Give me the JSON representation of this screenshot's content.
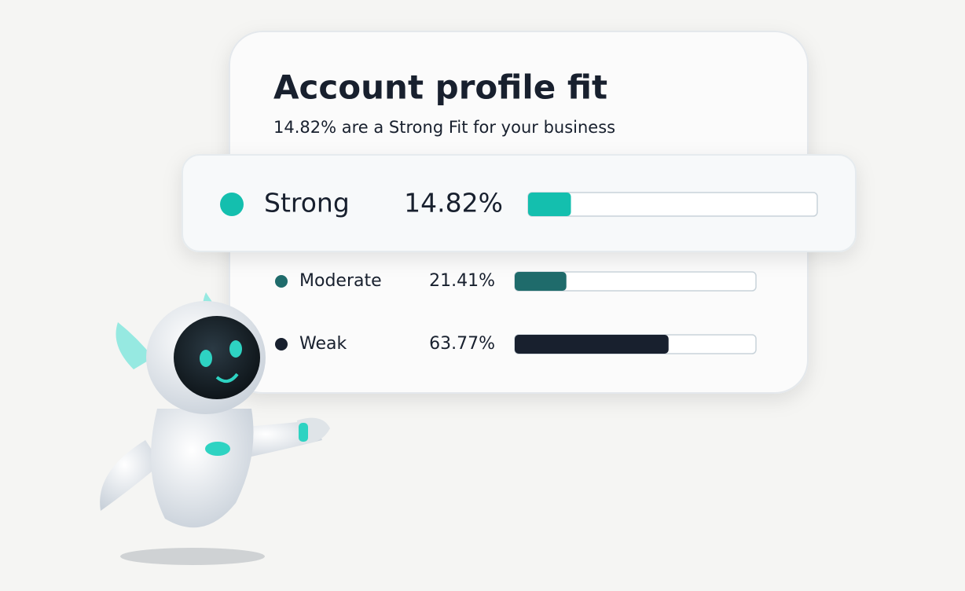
{
  "title": "Account profile fit",
  "subtitle": "14.82% are a Strong Fit for your business",
  "xlim": [
    0,
    100
  ],
  "rows": [
    {
      "label": "Strong",
      "value": 14.82,
      "value_label": "14.82%",
      "color": "#14bfae"
    },
    {
      "label": "Moderate",
      "value": 21.41,
      "value_label": "21.41%",
      "color": "#1f6b6b"
    },
    {
      "label": "Weak",
      "value": 63.77,
      "value_label": "63.77%",
      "color": "#18202e"
    }
  ]
}
